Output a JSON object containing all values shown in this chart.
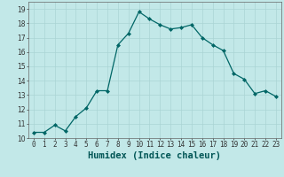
{
  "x": [
    0,
    1,
    2,
    3,
    4,
    5,
    6,
    7,
    8,
    9,
    10,
    11,
    12,
    13,
    14,
    15,
    16,
    17,
    18,
    19,
    20,
    21,
    22,
    23
  ],
  "y": [
    10.4,
    10.4,
    10.9,
    10.5,
    11.5,
    12.1,
    13.3,
    13.3,
    16.5,
    17.3,
    18.8,
    18.3,
    17.9,
    17.6,
    17.7,
    17.9,
    17.0,
    16.5,
    16.1,
    14.5,
    14.1,
    13.1,
    13.3,
    12.9
  ],
  "xlabel": "Humidex (Indice chaleur)",
  "ylim": [
    10,
    19.5
  ],
  "xlim": [
    -0.5,
    23.5
  ],
  "yticks": [
    10,
    11,
    12,
    13,
    14,
    15,
    16,
    17,
    18,
    19
  ],
  "xtick_labels": [
    "0",
    "1",
    "2",
    "3",
    "4",
    "5",
    "6",
    "7",
    "8",
    "9",
    "10",
    "11",
    "12",
    "13",
    "14",
    "15",
    "16",
    "17",
    "18",
    "19",
    "20",
    "21",
    "22",
    "23"
  ],
  "line_color": "#006666",
  "marker": "D",
  "marker_size": 2.0,
  "bg_color": "#c2e8e8",
  "grid_color": "#aad4d4",
  "tick_label_fontsize": 5.5,
  "xlabel_fontsize": 7.5
}
